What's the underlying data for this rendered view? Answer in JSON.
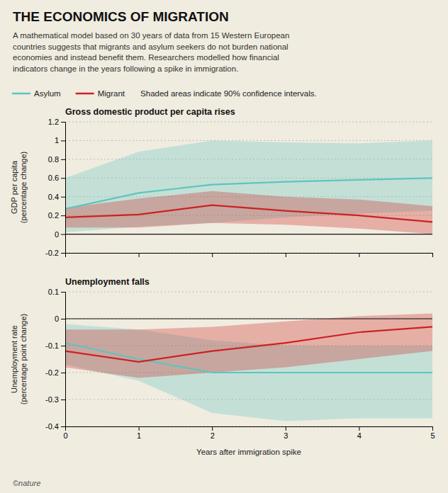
{
  "title": "THE ECONOMICS OF MIGRATION",
  "subtitle": "A mathematical model based on 30 years of data from 15 Western European\ncountries suggests that migrants and asylum seekers do not burden national\neconomies and instead benefit them. Researchers modelled how financial\nindicators change in the years following a spike in immigration.",
  "annotations": [
    "Shaded areas indicate 90% confidence intervals.",
    "©nature"
  ],
  "chart_data": [
    {
      "type": "line",
      "title": "Gross domestic product per capita rises",
      "y_label": "GDP per capita\n(percentage change)",
      "x": [
        0,
        1,
        2,
        3,
        4,
        5
      ],
      "xlim": [
        0,
        5
      ],
      "xticks": [
        0,
        1,
        2,
        3,
        4,
        5
      ],
      "ylim": [
        -0.2,
        1.2
      ],
      "yticks": [
        -0.2,
        0,
        0.2,
        0.4,
        0.6,
        0.8,
        1,
        1.2
      ],
      "grid": true,
      "tick_labels": "y",
      "series": [
        {
          "name": "Asylum",
          "color": "#5fc4c0",
          "values": [
            0.27,
            0.44,
            0.53,
            0.56,
            0.58,
            0.6
          ],
          "lower": [
            0.02,
            0.08,
            0.12,
            0.18,
            0.22,
            0.25
          ],
          "upper": [
            0.6,
            0.88,
            1.0,
            0.98,
            0.97,
            1.0
          ]
        },
        {
          "name": "Migrant",
          "color": "#cc2222",
          "values": [
            0.18,
            0.21,
            0.31,
            0.25,
            0.2,
            0.13
          ],
          "lower": [
            0.07,
            0.07,
            0.12,
            0.1,
            0.06,
            0.0
          ],
          "upper": [
            0.28,
            0.38,
            0.46,
            0.4,
            0.37,
            0.3
          ]
        }
      ]
    },
    {
      "type": "line",
      "title": "Unemployment falls",
      "x_label": "Years after immigration spike",
      "y_label": "Unemployment rate\n(percentage point change)",
      "x": [
        0,
        1,
        2,
        3,
        4,
        5
      ],
      "xlim": [
        0,
        5
      ],
      "xticks": [
        0,
        1,
        2,
        3,
        4,
        5
      ],
      "ylim": [
        -0.4,
        0.1
      ],
      "yticks": [
        -0.4,
        -0.3,
        -0.2,
        -0.1,
        0,
        0.1
      ],
      "grid": true,
      "series": [
        {
          "color": "#5fc4c0",
          "values": [
            -0.09,
            -0.15,
            -0.2,
            -0.2,
            -0.2,
            -0.2
          ],
          "lower": [
            -0.17,
            -0.23,
            -0.35,
            -0.38,
            -0.37,
            -0.37
          ],
          "upper": [
            -0.02,
            -0.04,
            -0.08,
            -0.1,
            -0.1,
            -0.1
          ]
        },
        {
          "color": "#cc2222",
          "values": [
            -0.12,
            -0.16,
            -0.12,
            -0.09,
            -0.05,
            -0.03
          ],
          "lower": [
            -0.18,
            -0.22,
            -0.2,
            -0.18,
            -0.15,
            -0.12
          ],
          "upper": [
            -0.04,
            -0.04,
            -0.03,
            -0.01,
            0.01,
            0.02
          ]
        }
      ]
    }
  ]
}
